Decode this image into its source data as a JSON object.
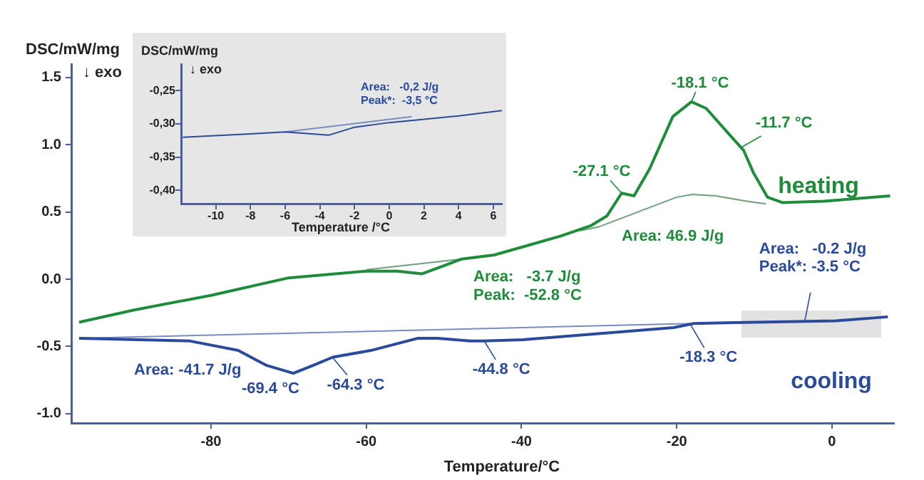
{
  "chart_data": [
    {
      "type": "line",
      "xlabel": "Temperature/°C",
      "ylabel": "DSC/mW/mg",
      "xlim": [
        -98,
        8
      ],
      "ylim": [
        -1.07,
        1.6
      ],
      "xticks": [
        -80,
        -60,
        -40,
        -20,
        0
      ],
      "yticks": [
        1.5,
        {
          "value": 1,
          "label": "1.0"
        },
        0.5,
        {
          "value": 0,
          "label": "0.0"
        },
        -0.5,
        {
          "value": -1,
          "label": "-1.0"
        }
      ],
      "grid": false,
      "legend": false,
      "series": [
        {
          "name": "heating",
          "color": "#1e8c3a",
          "x": [
            -97,
            -90,
            -80,
            -70,
            -60,
            -56,
            -52.8,
            -50,
            -47.7,
            -43.5,
            -35,
            -33,
            -31,
            -29,
            -27.1,
            -25.5,
            -23.5,
            -20.5,
            -18.1,
            -16.2,
            -12.5,
            -11.4,
            -10.1,
            -8.3,
            -6.4,
            -1,
            7.5
          ],
          "values": [
            -0.32,
            -0.23,
            -0.12,
            0.01,
            0.06,
            0.06,
            0.04,
            0.1,
            0.15,
            0.18,
            0.32,
            0.36,
            0.4,
            0.47,
            0.64,
            0.62,
            0.82,
            1.21,
            1.32,
            1.27,
            1.03,
            0.96,
            0.79,
            0.61,
            0.57,
            0.58,
            0.62
          ]
        },
        {
          "color": "#6f9f7c",
          "x": [
            -60,
            -47.7
          ],
          "values": [
            0.07,
            0.15
          ]
        },
        {
          "color": "#6f9f7c",
          "x": [
            -32.5,
            -30,
            -25,
            -20,
            -18,
            -15,
            -11,
            -8.5
          ],
          "values": [
            0.36,
            0.39,
            0.5,
            0.61,
            0.63,
            0.62,
            0.58,
            0.56
          ]
        },
        {
          "name": "cooling",
          "color": "#2a4a9c",
          "x": [
            -97,
            -82.7,
            -76.5,
            -72.9,
            -69.4,
            -66.8,
            -64.3,
            -59.4,
            -53.4,
            -50.8,
            -46.6,
            -44.8,
            -39.8,
            -20.4,
            -17.8,
            -9.9,
            0.5,
            7.2
          ],
          "values": [
            -0.44,
            -0.46,
            -0.53,
            -0.64,
            -0.7,
            -0.64,
            -0.58,
            -0.53,
            -0.44,
            -0.44,
            -0.46,
            -0.46,
            -0.45,
            -0.36,
            -0.33,
            -0.32,
            -0.31,
            -0.28
          ]
        },
        {
          "color": "#7a8cc4",
          "x": [
            -97,
            -18
          ],
          "values": [
            -0.44,
            -0.33
          ]
        }
      ],
      "annotations": [
        {
          "text": "-27.1 °C",
          "x": -27.1,
          "y": 0.64
        },
        {
          "text": "-18.1 °C",
          "x": -18.1,
          "y": 1.32
        },
        {
          "text": "-11.7 °C",
          "x": -11.7,
          "y": 0.98
        },
        "Area: 46.9 J/g",
        "Area:   -3.7 J/g\nPeak:  -52.8 °C",
        {
          "text": "Area:   -0.2 J/g\nPeak*: -3.5 °C",
          "x": -3.5,
          "y": -0.31
        },
        "Area: -41.7 J/g",
        {
          "text": "-69.4 °C",
          "x": -69.4,
          "y": -0.7
        },
        {
          "text": "-64.3 °C",
          "x": -64.3,
          "y": -0.585
        },
        {
          "text": "-44.8 °C",
          "x": -44.8,
          "y": -0.46
        },
        {
          "text": "-18.3 °C",
          "x": -18.3,
          "y": -0.33
        },
        "↓ exo"
      ]
    },
    {
      "type": "line",
      "xlabel": "Temperature /°C",
      "ylabel": "DSC/mW/mg",
      "xlim": [
        -12,
        6.5
      ],
      "ylim": [
        -0.42,
        -0.21
      ],
      "xticks": [
        -10,
        -8,
        -6,
        -4,
        -2,
        0,
        2,
        4,
        6
      ],
      "yticks": [
        {
          "value": -0.25,
          "label": "-0,25"
        },
        {
          "value": -0.3,
          "label": "-0,30"
        },
        {
          "value": -0.35,
          "label": "-0,35"
        },
        {
          "value": -0.4,
          "label": "-0,40"
        }
      ],
      "grid": false,
      "legend": false,
      "series": [
        {
          "color": "#2a4a9c",
          "x": [
            -11.9,
            -8,
            -6,
            -3.5,
            -2,
            0,
            2,
            4,
            6.5
          ],
          "values": [
            -0.32,
            -0.315,
            -0.312,
            -0.317,
            -0.305,
            -0.298,
            -0.293,
            -0.288,
            -0.28
          ]
        },
        {
          "color": "#7a8cc4",
          "x": [
            -6,
            1.3
          ],
          "values": [
            -0.312,
            -0.289
          ]
        }
      ],
      "annotations": [
        "Area:   -0,2 J/g\nPeak*:  -3,5 °C",
        "↓ exo"
      ]
    }
  ]
}
